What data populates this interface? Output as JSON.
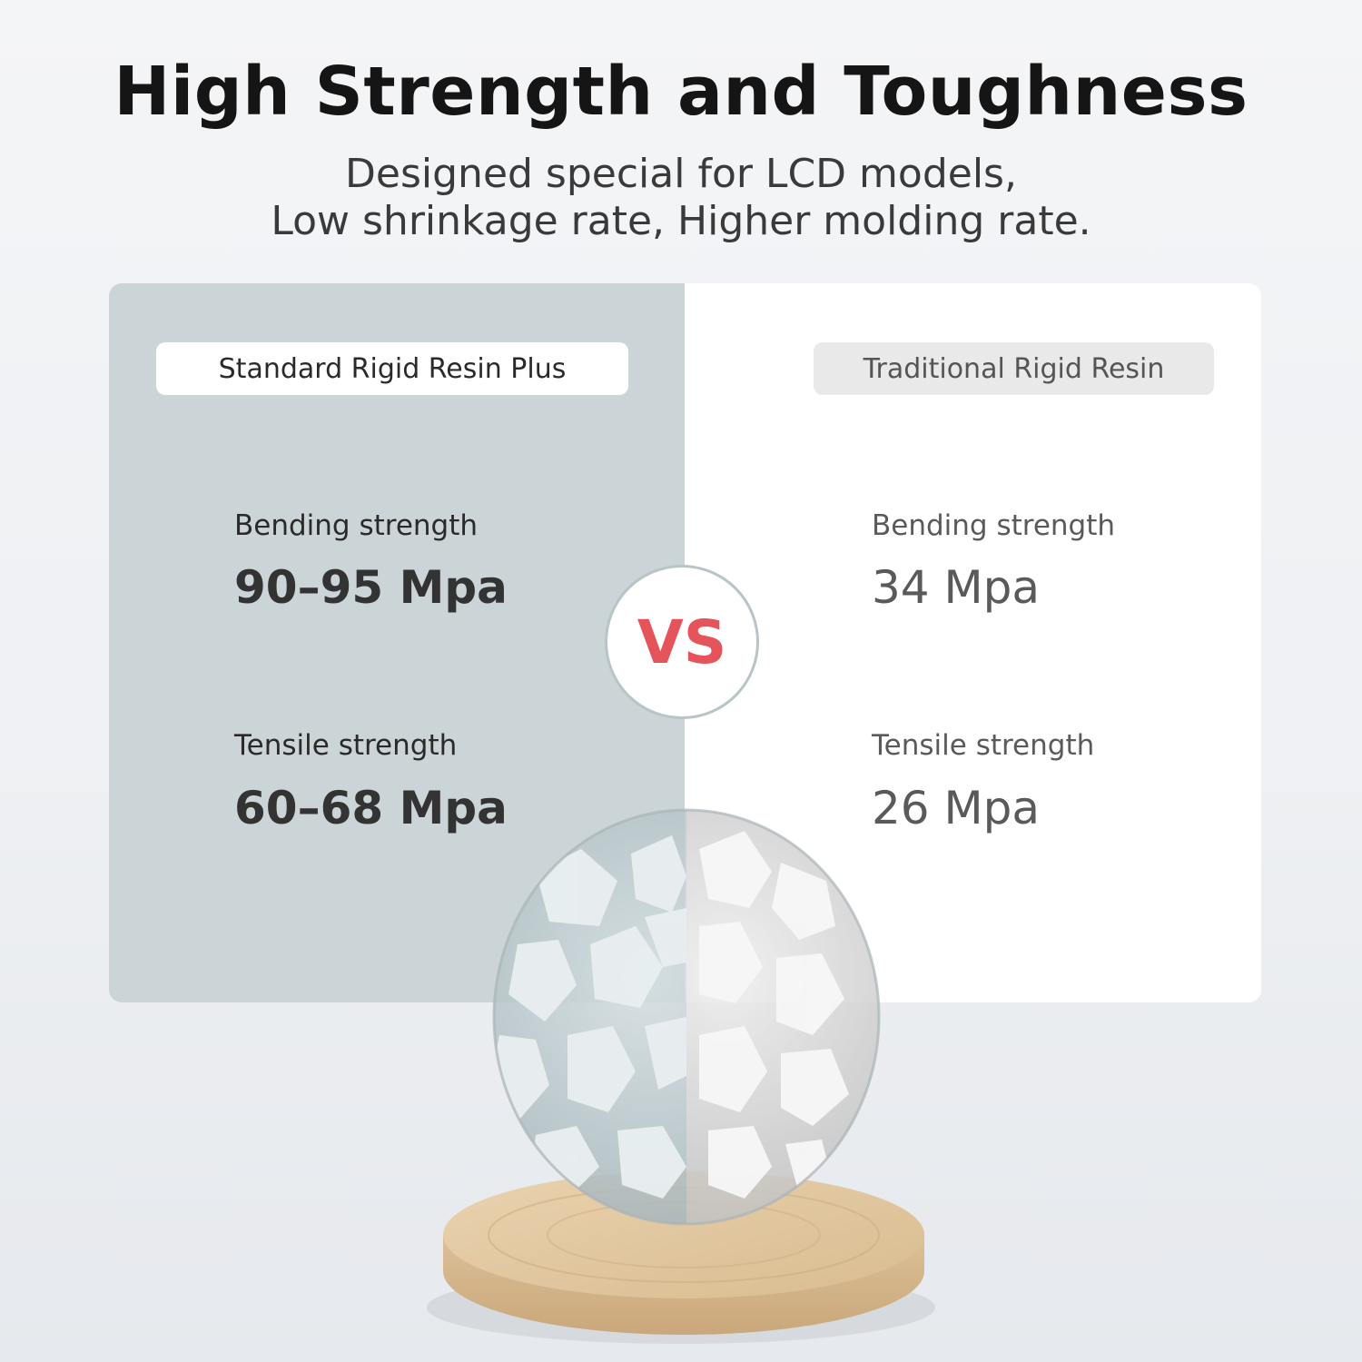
{
  "header": {
    "title": "High Strength and Toughness",
    "subtitle_line1": "Designed special for LCD models,",
    "subtitle_line2": "Low shrinkage rate, Higher molding rate."
  },
  "comparison": {
    "vs_label": "VS",
    "left": {
      "name": "Standard Rigid Resin Plus",
      "bending_label": "Bending strength",
      "bending_value": "90–95 Mpa",
      "tensile_label": "Tensile strength",
      "tensile_value": "60–68 Mpa"
    },
    "right": {
      "name": "Traditional Rigid Resin",
      "bending_label": "Bending strength",
      "bending_value": "34 Mpa",
      "tensile_label": "Tensile strength",
      "tensile_value": "26 Mpa"
    }
  },
  "colors": {
    "left_panel": "#cbd5d7",
    "right_panel": "#ffffff",
    "vs_accent": "#e4545a"
  }
}
